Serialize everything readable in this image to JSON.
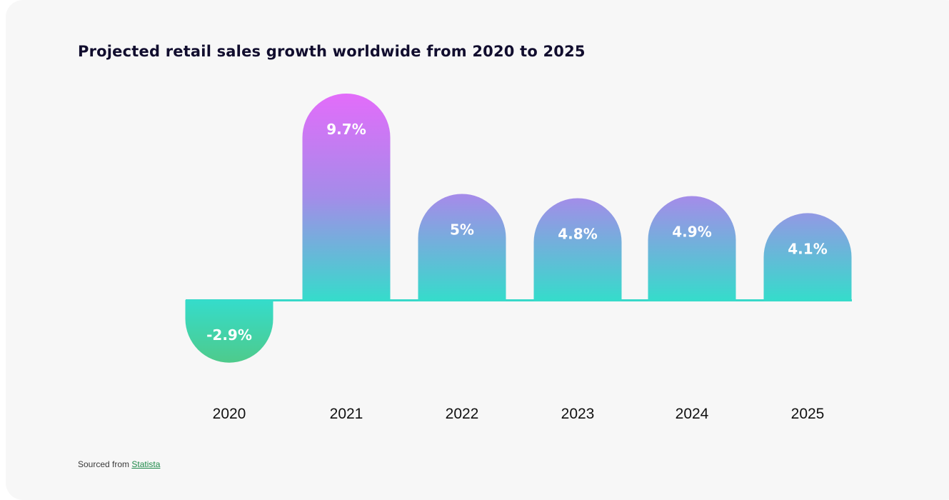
{
  "source": {
    "prefix": "Sourced from",
    "link_text": "Statista"
  },
  "colors": {
    "background": "#f7f7f7",
    "bar_top_magenta": "#e36cfa",
    "bar_mid_violet": "#a48ce9",
    "bar_bottom_teal": "#35dccb",
    "negative_bottom_green": "#56c577",
    "title": "#110d2e",
    "source_link": "#1f8a4a"
  },
  "chart_data": {
    "type": "bar",
    "title": "Projected retail sales growth worldwide from 2020 to 2025",
    "xlabel": "",
    "ylabel": "",
    "categories": [
      "2020",
      "2021",
      "2022",
      "2023",
      "2024",
      "2025"
    ],
    "values": [
      -2.9,
      9.7,
      5,
      4.8,
      4.9,
      4.1
    ],
    "data_labels": [
      "-2.9%",
      "9.7%",
      "5%",
      "4.8%",
      "4.9%",
      "4.1%"
    ],
    "grid": false,
    "legend": "none",
    "bar_style": "rounded-end pill with vertical gradient"
  }
}
